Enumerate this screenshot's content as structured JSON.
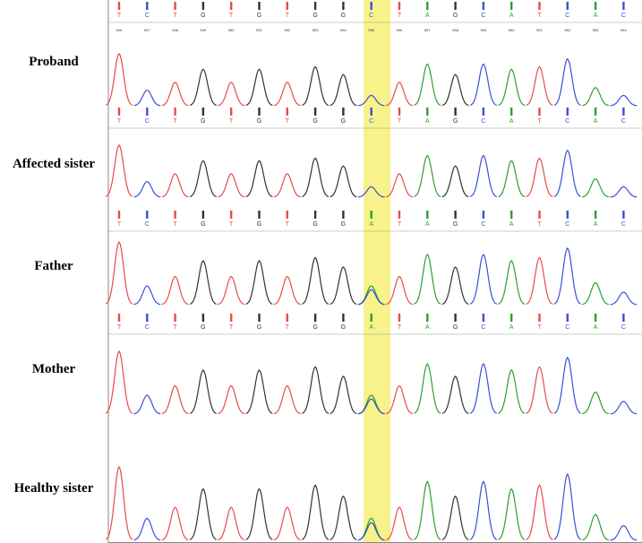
{
  "colors": {
    "A": "#2ca02c",
    "C": "#3b4fd8",
    "G": "#333333",
    "T": "#e84b4b",
    "highlight": "#f7f38a",
    "frame": "#888888"
  },
  "samples": [
    {
      "label": "Proband",
      "calls": [
        "T",
        "C",
        "T",
        "G",
        "T",
        "G",
        "T",
        "G",
        "G",
        "C",
        "T",
        "A",
        "G",
        "C",
        "A",
        "T",
        "C",
        "A",
        "C"
      ]
    },
    {
      "label": "Affected sister",
      "calls": [
        "T",
        "C",
        "T",
        "G",
        "T",
        "G",
        "T",
        "G",
        "G",
        "C",
        "T",
        "A",
        "G",
        "C",
        "A",
        "T",
        "C",
        "A",
        "C"
      ]
    },
    {
      "label": "Father",
      "calls": [
        "T",
        "C",
        "T",
        "G",
        "T",
        "G",
        "T",
        "G",
        "G",
        "A",
        "T",
        "A",
        "G",
        "C",
        "A",
        "T",
        "C",
        "A",
        "C"
      ]
    },
    {
      "label": "Mother",
      "calls": [
        "T",
        "C",
        "T",
        "G",
        "T",
        "G",
        "T",
        "G",
        "G",
        "A",
        "T",
        "A",
        "G",
        "C",
        "A",
        "T",
        "C",
        "A",
        "C"
      ]
    },
    {
      "label": "Healthy sister",
      "calls": []
    }
  ],
  "top_positions": [
    "546",
    "547",
    "548",
    "549",
    "550",
    "551",
    "552",
    "553",
    "554",
    "555",
    "556",
    "557",
    "558",
    "559",
    "560",
    "561",
    "562",
    "563",
    "564"
  ],
  "traces": {
    "peaks": [
      {
        "base": "T",
        "h": 1.0
      },
      {
        "base": "C",
        "h": 0.3
      },
      {
        "base": "T",
        "h": 0.45
      },
      {
        "base": "G",
        "h": 0.7
      },
      {
        "base": "T",
        "h": 0.45
      },
      {
        "base": "G",
        "h": 0.7
      },
      {
        "base": "T",
        "h": 0.45
      },
      {
        "base": "G",
        "h": 0.75
      },
      {
        "base": "G",
        "h": 0.6
      },
      {
        "base": "C",
        "h": 0.2
      },
      {
        "base": "T",
        "h": 0.45
      },
      {
        "base": "A",
        "h": 0.8
      },
      {
        "base": "G",
        "h": 0.6
      },
      {
        "base": "C",
        "h": 0.8
      },
      {
        "base": "A",
        "h": 0.7
      },
      {
        "base": "T",
        "h": 0.75
      },
      {
        "base": "C",
        "h": 0.9
      },
      {
        "base": "A",
        "h": 0.35
      },
      {
        "base": "C",
        "h": 0.2
      }
    ],
    "het_secondary": [
      {
        "index": 9,
        "base": "A",
        "h": 0.3
      }
    ]
  }
}
